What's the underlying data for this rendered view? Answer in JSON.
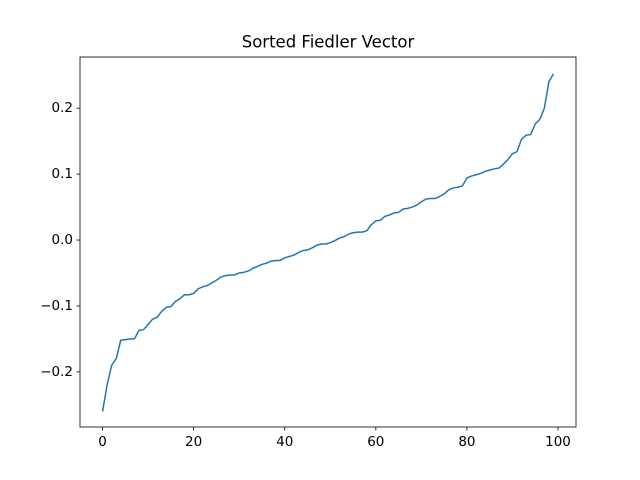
{
  "chart_data": {
    "type": "line",
    "title": "Sorted Fiedler Vector",
    "x": [
      0,
      1,
      2,
      3,
      4,
      5,
      6,
      7,
      8,
      9,
      10,
      11,
      12,
      13,
      14,
      15,
      16,
      17,
      18,
      19,
      20,
      21,
      22,
      23,
      24,
      25,
      26,
      27,
      28,
      29,
      30,
      31,
      32,
      33,
      34,
      35,
      36,
      37,
      38,
      39,
      40,
      41,
      42,
      43,
      44,
      45,
      46,
      47,
      48,
      49,
      50,
      51,
      52,
      53,
      54,
      55,
      56,
      57,
      58,
      59,
      60,
      61,
      62,
      63,
      64,
      65,
      66,
      67,
      68,
      69,
      70,
      71,
      72,
      73,
      74,
      75,
      76,
      77,
      78,
      79,
      80,
      81,
      82,
      83,
      84,
      85,
      86,
      87,
      88,
      89,
      90,
      91,
      92,
      93,
      94,
      95,
      96,
      97,
      98,
      99
    ],
    "values": [
      -0.26,
      -0.22,
      -0.19,
      -0.18,
      -0.152,
      -0.151,
      -0.15,
      -0.15,
      -0.137,
      -0.136,
      -0.128,
      -0.12,
      -0.117,
      -0.108,
      -0.102,
      -0.101,
      -0.093,
      -0.089,
      -0.083,
      -0.083,
      -0.081,
      -0.074,
      -0.071,
      -0.069,
      -0.065,
      -0.061,
      -0.056,
      -0.054,
      -0.053,
      -0.053,
      -0.05,
      -0.049,
      -0.047,
      -0.043,
      -0.04,
      -0.037,
      -0.035,
      -0.032,
      -0.031,
      -0.031,
      -0.027,
      -0.025,
      -0.023,
      -0.019,
      -0.016,
      -0.015,
      -0.012,
      -0.008,
      -0.006,
      -0.006,
      -0.004,
      -0.001,
      0.003,
      0.005,
      0.009,
      0.011,
      0.012,
      0.012,
      0.014,
      0.023,
      0.029,
      0.03,
      0.036,
      0.038,
      0.041,
      0.042,
      0.047,
      0.048,
      0.05,
      0.053,
      0.058,
      0.062,
      0.063,
      0.063,
      0.066,
      0.07,
      0.076,
      0.079,
      0.08,
      0.082,
      0.094,
      0.097,
      0.099,
      0.101,
      0.104,
      0.106,
      0.108,
      0.109,
      0.115,
      0.122,
      0.131,
      0.134,
      0.153,
      0.159,
      0.16,
      0.176,
      0.183,
      0.2,
      0.24,
      0.252
    ],
    "color": "#1f77b4",
    "xlim": [
      -4.95,
      103.95
    ],
    "xticks": [
      0,
      20,
      40,
      60,
      80,
      100
    ],
    "ylim": [
      -0.2836,
      0.2776
    ],
    "yticks": [
      {
        "value": -0.2,
        "label": "−0.2"
      },
      {
        "value": -0.1,
        "label": "−0.1"
      },
      {
        "value": 0,
        "label": "0.0"
      },
      0.1,
      0.2
    ],
    "grid": false
  }
}
